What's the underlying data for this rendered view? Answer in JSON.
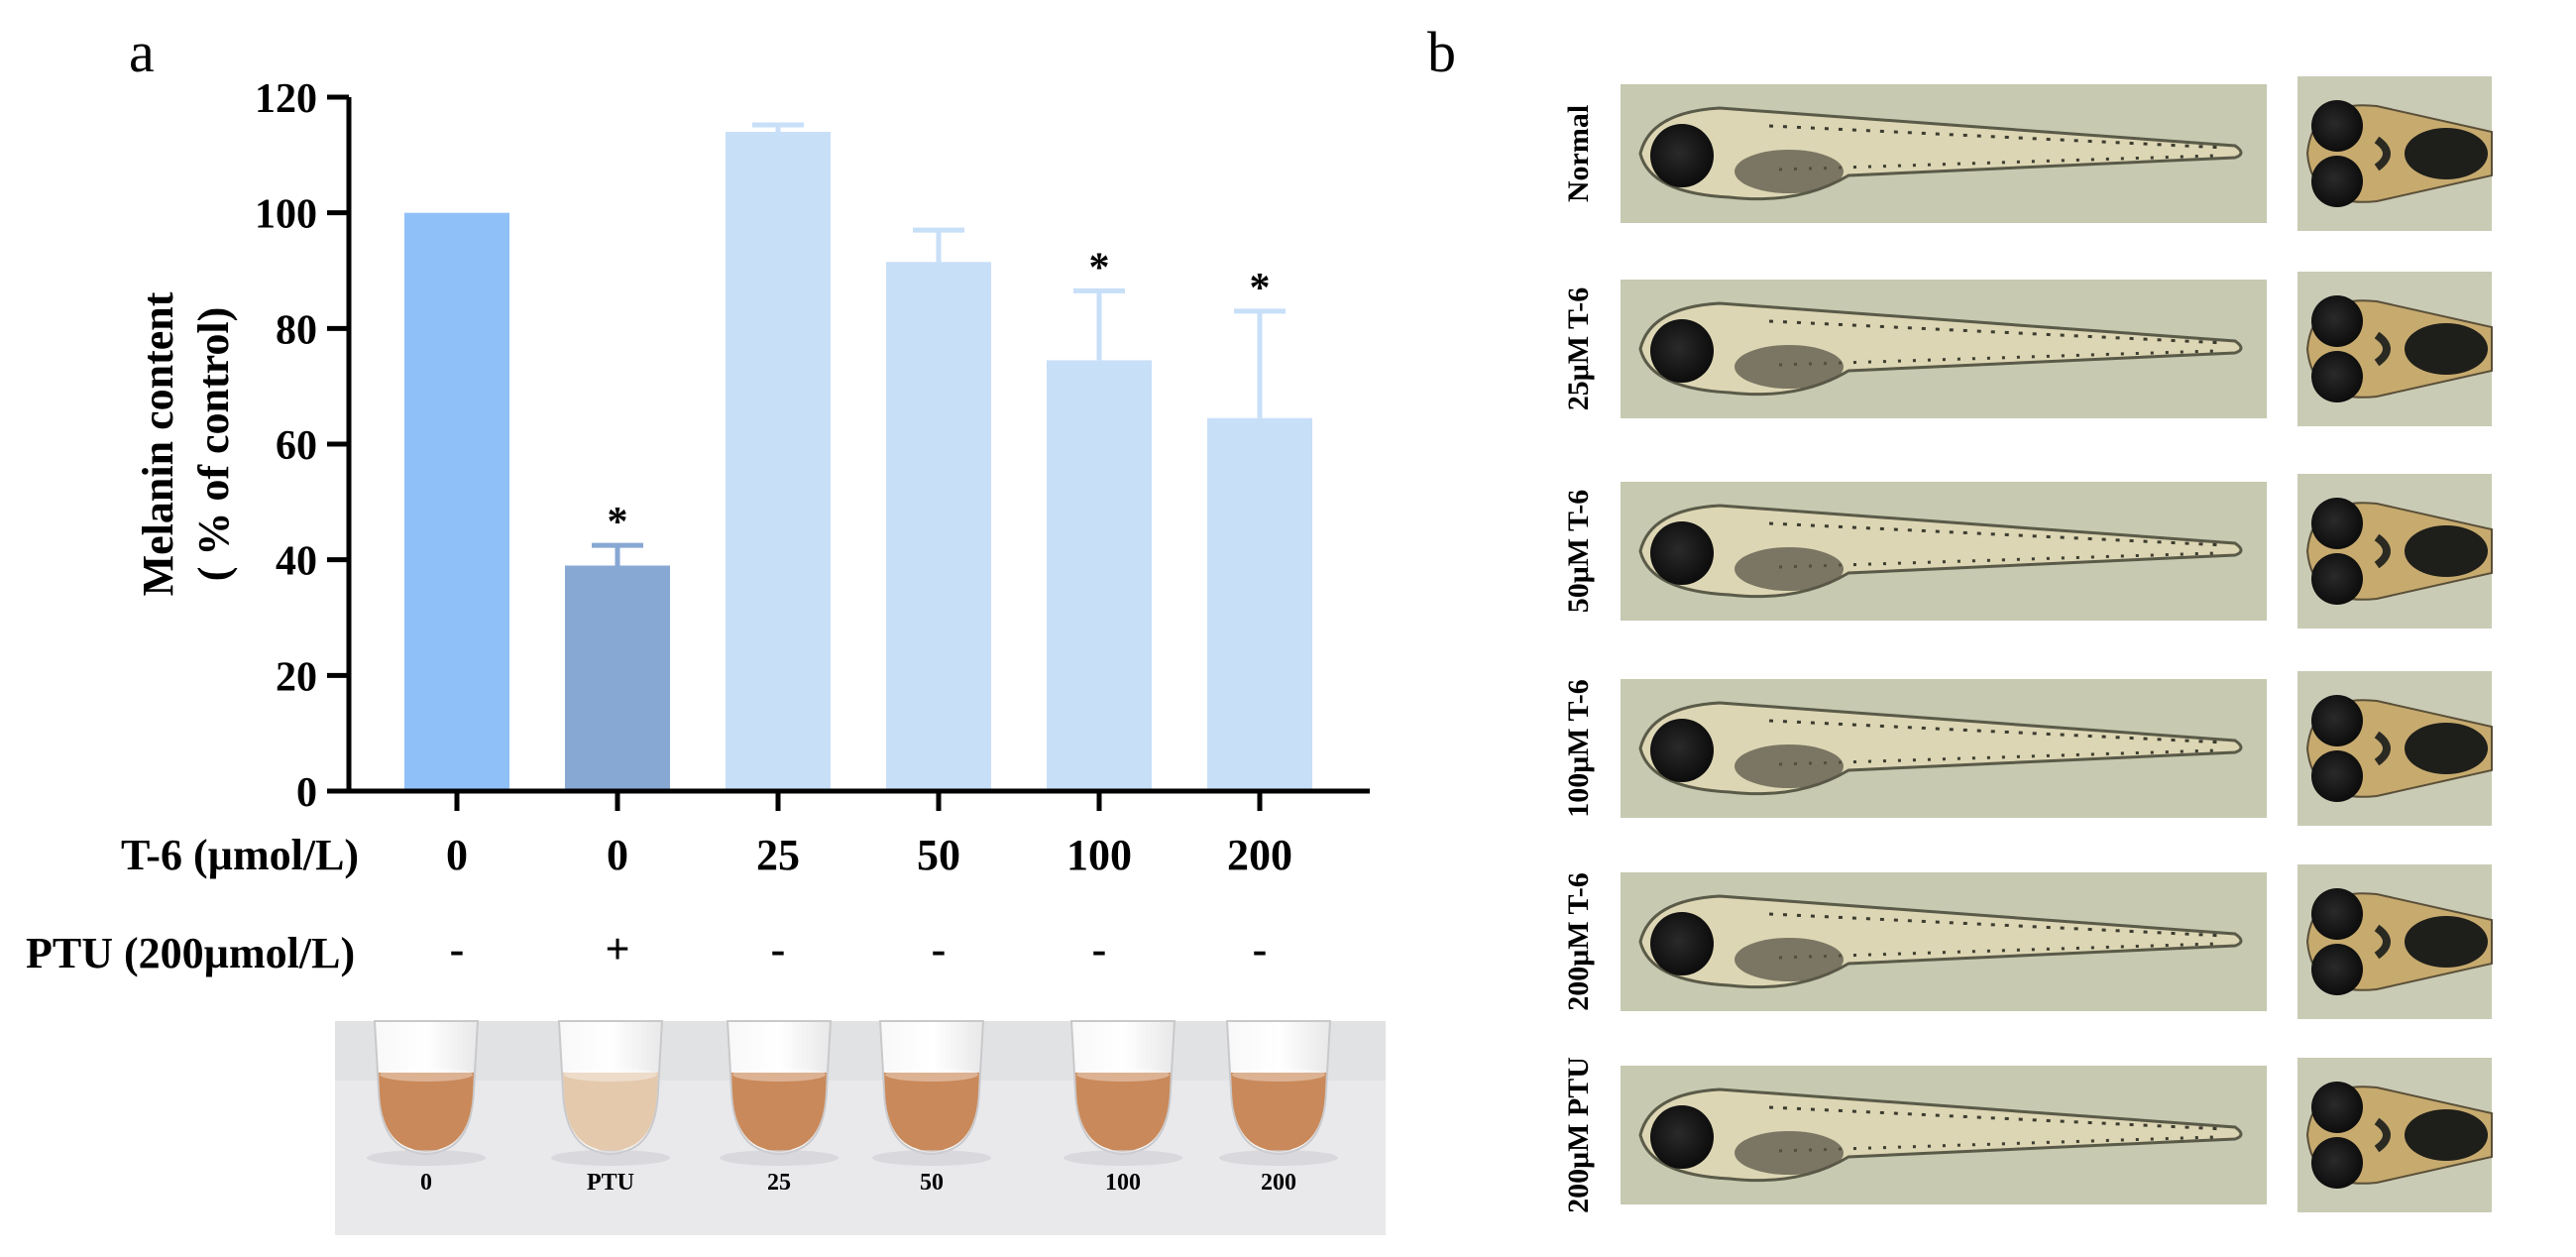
{
  "panels": {
    "a_label": "a",
    "b_label": "b"
  },
  "chart_data": {
    "type": "bar",
    "title": "",
    "xlabel": "",
    "ylabel_line1": "Melanin content",
    "ylabel_line2": "( % of control)",
    "ylim": [
      0,
      120
    ],
    "yticks": [
      "0",
      "20",
      "40",
      "60",
      "80",
      "100",
      "120"
    ],
    "categories": [
      "0",
      "0",
      "25",
      "50",
      "100",
      "200"
    ],
    "values": [
      100,
      39,
      114,
      91.5,
      74.5,
      64.5
    ],
    "errors": [
      0,
      3.5,
      1.2,
      5.5,
      12,
      18.5
    ],
    "significance": [
      "",
      "*",
      "",
      "",
      "*",
      "*"
    ],
    "bar_colors": [
      "#90c0f8",
      "#88a8d4",
      "#c8dff8",
      "#c8dff8",
      "#c8dff8",
      "#c8dff8"
    ],
    "t6_row_label": "T-6 (µmol/L)",
    "ptu_row_label": "PTU (200µmol/L)",
    "ptu_values": [
      "-",
      "+",
      "-",
      "-",
      "-",
      "-"
    ]
  },
  "tubes": {
    "labels": [
      "0",
      "PTU",
      "25",
      "50",
      "100",
      "200"
    ],
    "liquid_colors": [
      "#c9895a",
      "#e4c9ad",
      "#c9895a",
      "#c9895a",
      "#c9895a",
      "#c9895a"
    ]
  },
  "zebrafish": {
    "row_labels": [
      "Normal",
      "25μM T-6",
      "50μM T-6",
      "100μM T-6",
      "200μM T-6",
      "200μM PTU"
    ]
  }
}
